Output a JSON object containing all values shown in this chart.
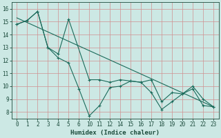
{
  "xlabel": "Humidex (Indice chaleur)",
  "bg_color": "#cce8e4",
  "grid_color": "#d09090",
  "line_color": "#1a6a5a",
  "ylim": [
    7.5,
    16.5
  ],
  "yticks": [
    8,
    9,
    10,
    11,
    12,
    13,
    14,
    15,
    16
  ],
  "x_tick_labels": [
    "0",
    "1",
    "2",
    "3",
    "4",
    "5",
    "6",
    "10",
    "11",
    "12",
    "14",
    "15",
    "16",
    "17",
    "18",
    "19",
    "20",
    "21",
    "22",
    "23"
  ],
  "x_tick_pos": [
    0,
    1,
    2,
    3,
    4,
    5,
    6,
    7,
    8,
    9,
    10,
    11,
    12,
    13,
    14,
    15,
    16,
    17,
    18,
    19
  ],
  "series1_pos": [
    0,
    1,
    2,
    3,
    4,
    5,
    6,
    7,
    8,
    9,
    10,
    11,
    12,
    13,
    14,
    15,
    16,
    17,
    18,
    19
  ],
  "series1_y": [
    14.8,
    15.1,
    15.8,
    13.0,
    12.2,
    11.8,
    9.8,
    7.7,
    8.5,
    9.9,
    10.0,
    10.4,
    10.3,
    10.5,
    8.8,
    9.5,
    9.4,
    10.0,
    9.0,
    8.4
  ],
  "series2_pos": [
    0,
    1,
    2,
    3,
    4,
    5,
    7,
    8,
    9,
    10,
    11,
    12,
    13,
    14,
    15,
    16,
    17,
    18,
    19
  ],
  "series2_y": [
    14.8,
    15.1,
    15.8,
    13.0,
    12.5,
    15.2,
    10.5,
    10.5,
    10.3,
    10.5,
    10.4,
    10.3,
    9.5,
    8.2,
    8.8,
    9.4,
    9.8,
    8.5,
    8.4
  ],
  "trend_x": [
    0,
    19
  ],
  "trend_y": [
    15.3,
    8.4
  ]
}
